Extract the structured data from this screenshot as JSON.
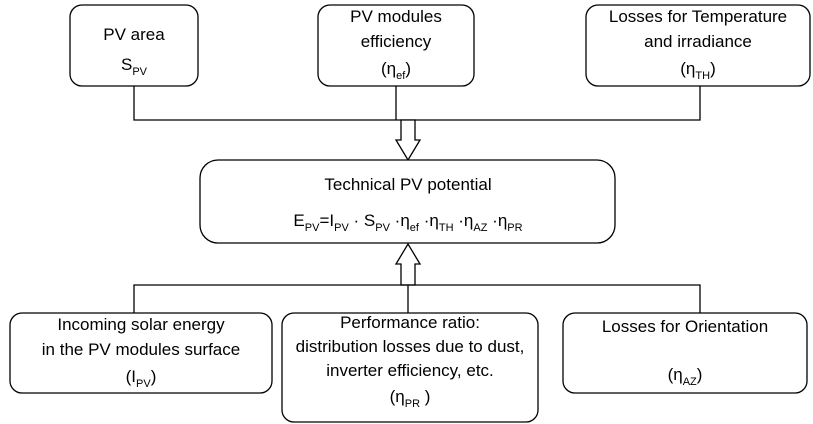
{
  "nodes": [
    {
      "lines": [
        "PV area",
        {
          "base": "S",
          "sub": "PV"
        }
      ]
    },
    {
      "lines": [
        "PV modules",
        "efficiency",
        {
          "before": "(",
          "base": "η",
          "sub": "ef",
          "after": ")"
        }
      ]
    },
    {
      "lines": [
        "Losses for Temperature",
        "and irradiance",
        {
          "before": "(",
          "base": "η",
          "sub": "TH",
          "after": ")"
        }
      ]
    },
    {
      "lines": [
        "Technical PV potential"
      ],
      "formula": [
        {
          "base": "E",
          "sub": "PV"
        },
        "=",
        {
          "base": "I",
          "sub": "PV"
        },
        " · ",
        {
          "base": "S",
          "sub": "PV"
        },
        " ·",
        {
          "base": "η",
          "sub": "ef"
        },
        " ·",
        {
          "base": "η",
          "sub": "TH"
        },
        " ·",
        {
          "base": "η",
          "sub": "AZ"
        },
        " ·",
        {
          "base": "η",
          "sub": "PR"
        }
      ]
    },
    {
      "lines": [
        "Incoming solar energy",
        "in the PV modules surface",
        {
          "before": "(",
          "base": "I",
          "sub": "PV",
          "after": ")"
        }
      ]
    },
    {
      "lines": [
        "Performance ratio:",
        "distribution losses due to dust,",
        "inverter efficiency, etc.",
        {
          "before": "(",
          "base": "η",
          "sub": "PR",
          "after": " )"
        }
      ]
    },
    {
      "lines": [
        "Losses for Orientation",
        {
          "before": "(",
          "base": "η",
          "sub": "AZ",
          "after": ")"
        }
      ]
    }
  ]
}
